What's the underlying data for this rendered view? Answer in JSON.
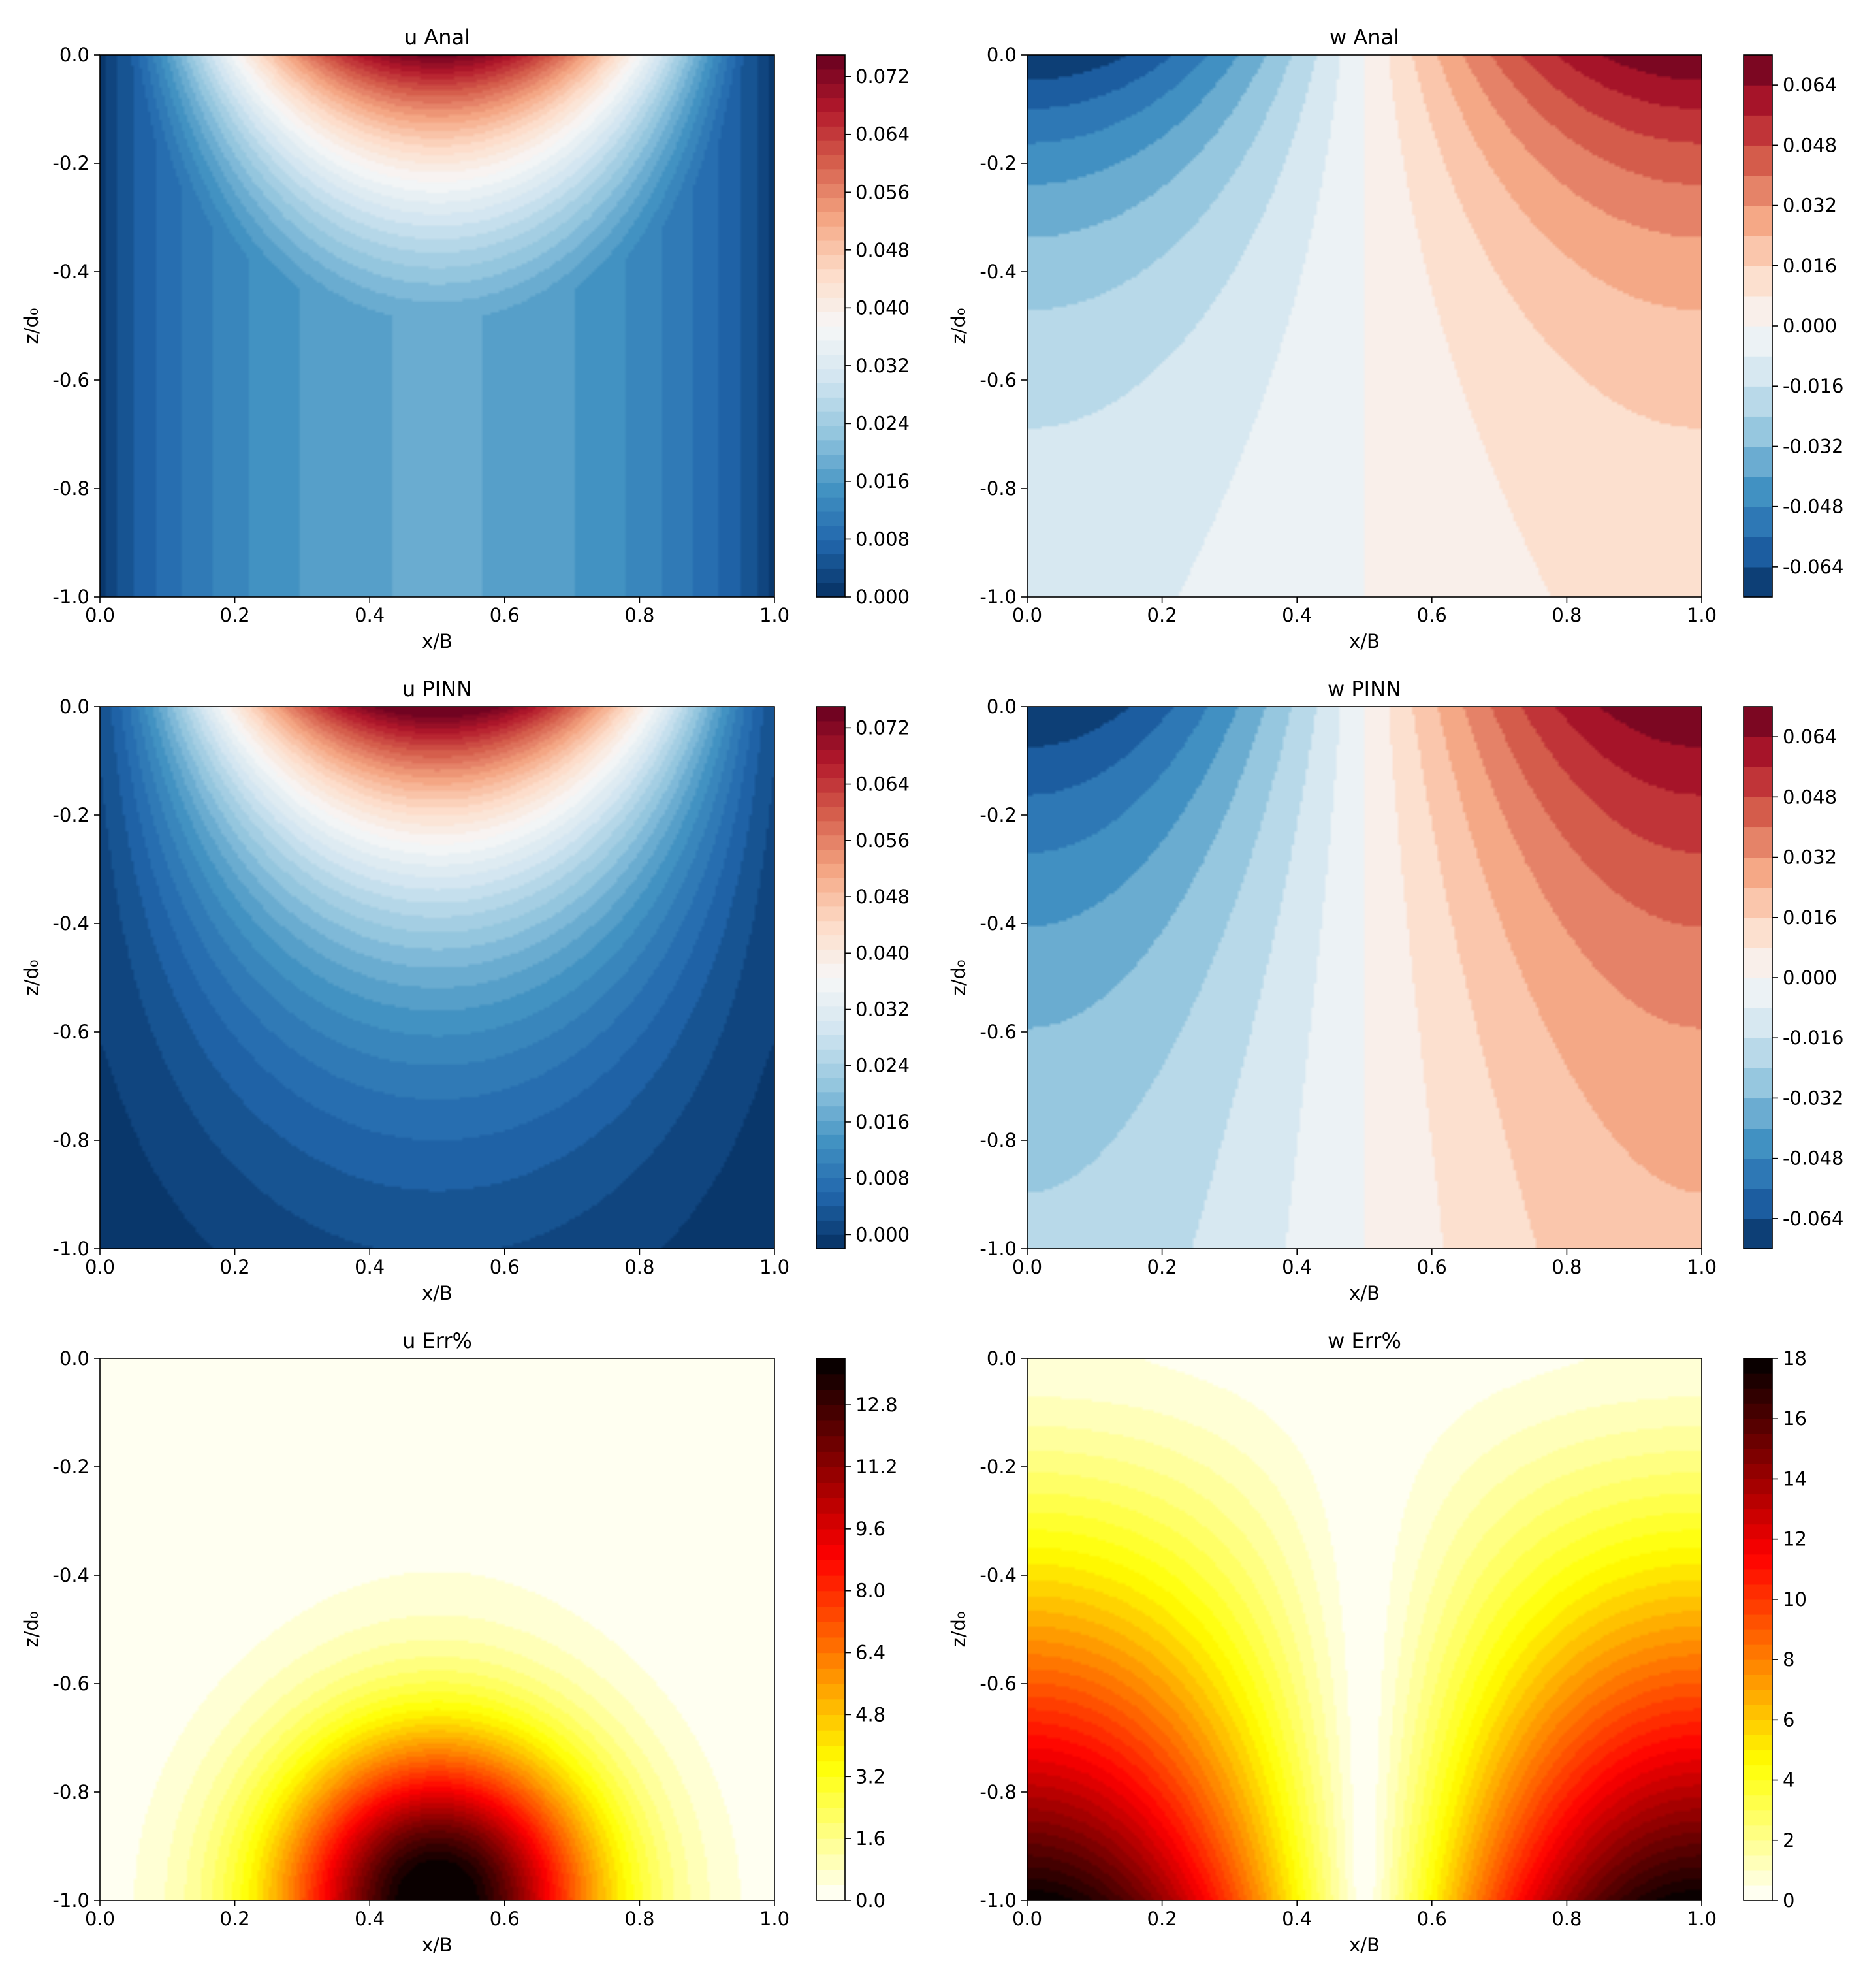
{
  "chart_data": [
    {
      "id": "u-anal",
      "type": "heatmap",
      "title": "u Anal",
      "xlabel": "x/B",
      "ylabel": "z/d₀",
      "xlim": [
        0.0,
        1.0
      ],
      "ylim": [
        -1.0,
        0.0
      ],
      "xticks": [
        "0.0",
        "0.2",
        "0.4",
        "0.6",
        "0.8",
        "1.0"
      ],
      "yticks": [
        "0.0",
        "-0.2",
        "-0.4",
        "-0.6",
        "-0.8",
        "-1.0"
      ],
      "colormap": "RdBu_r",
      "field": "u_anal",
      "vmin": 0.0,
      "vmax": 0.075,
      "levels": 38,
      "colorbar_ticks": [
        "0.000",
        "0.008",
        "0.016",
        "0.024",
        "0.032",
        "0.040",
        "0.048",
        "0.056",
        "0.064",
        "0.072"
      ],
      "colorbar_tick_values": [
        0.0,
        0.008,
        0.016,
        0.024,
        0.032,
        0.04,
        0.048,
        0.056,
        0.064,
        0.072
      ]
    },
    {
      "id": "w-anal",
      "type": "heatmap",
      "title": "w Anal",
      "xlabel": "x/B",
      "ylabel": "z/d₀",
      "xlim": [
        0.0,
        1.0
      ],
      "ylim": [
        -1.0,
        0.0
      ],
      "xticks": [
        "0.0",
        "0.2",
        "0.4",
        "0.6",
        "0.8",
        "1.0"
      ],
      "yticks": [
        "0.0",
        "-0.2",
        "-0.4",
        "-0.6",
        "-0.8",
        "-1.0"
      ],
      "colormap": "RdBu_r",
      "field": "w_anal",
      "vmin": -0.072,
      "vmax": 0.072,
      "levels": 18,
      "colorbar_ticks": [
        "-0.064",
        "-0.048",
        "-0.032",
        "-0.016",
        "0.000",
        "0.016",
        "0.032",
        "0.048",
        "0.064"
      ],
      "colorbar_tick_values": [
        -0.064,
        -0.048,
        -0.032,
        -0.016,
        0.0,
        0.016,
        0.032,
        0.048,
        0.064
      ]
    },
    {
      "id": "u-pinn",
      "type": "heatmap",
      "title": "u PINN",
      "xlabel": "x/B",
      "ylabel": "z/d₀",
      "xlim": [
        0.0,
        1.0
      ],
      "ylim": [
        -1.0,
        0.0
      ],
      "xticks": [
        "0.0",
        "0.2",
        "0.4",
        "0.6",
        "0.8",
        "1.0"
      ],
      "yticks": [
        "0.0",
        "-0.2",
        "-0.4",
        "-0.6",
        "-0.8",
        "-1.0"
      ],
      "colormap": "RdBu_r",
      "field": "u_pinn",
      "vmin": -0.002,
      "vmax": 0.075,
      "levels": 38,
      "colorbar_ticks": [
        "0.000",
        "0.008",
        "0.016",
        "0.024",
        "0.032",
        "0.040",
        "0.048",
        "0.056",
        "0.064",
        "0.072"
      ],
      "colorbar_tick_values": [
        0.0,
        0.008,
        0.016,
        0.024,
        0.032,
        0.04,
        0.048,
        0.056,
        0.064,
        0.072
      ]
    },
    {
      "id": "w-pinn",
      "type": "heatmap",
      "title": "w PINN",
      "xlabel": "x/B",
      "ylabel": "z/d₀",
      "xlim": [
        0.0,
        1.0
      ],
      "ylim": [
        -1.0,
        0.0
      ],
      "xticks": [
        "0.0",
        "0.2",
        "0.4",
        "0.6",
        "0.8",
        "1.0"
      ],
      "yticks": [
        "0.0",
        "-0.2",
        "-0.4",
        "-0.6",
        "-0.8",
        "-1.0"
      ],
      "colormap": "RdBu_r",
      "field": "w_pinn",
      "vmin": -0.072,
      "vmax": 0.072,
      "levels": 18,
      "colorbar_ticks": [
        "-0.064",
        "-0.048",
        "-0.032",
        "-0.016",
        "0.000",
        "0.016",
        "0.032",
        "0.048",
        "0.064"
      ],
      "colorbar_tick_values": [
        -0.064,
        -0.048,
        -0.032,
        -0.016,
        0.0,
        0.016,
        0.032,
        0.048,
        0.064
      ]
    },
    {
      "id": "u-err",
      "type": "heatmap",
      "title": "u Err%",
      "xlabel": "x/B",
      "ylabel": "z/d₀",
      "xlim": [
        0.0,
        1.0
      ],
      "ylim": [
        -1.0,
        0.0
      ],
      "xticks": [
        "0.0",
        "0.2",
        "0.4",
        "0.6",
        "0.8",
        "1.0"
      ],
      "yticks": [
        "0.0",
        "-0.2",
        "-0.4",
        "-0.6",
        "-0.8",
        "-1.0"
      ],
      "colormap": "hot_r",
      "field": "u_err",
      "vmin": 0.0,
      "vmax": 14.0,
      "levels": 35,
      "colorbar_ticks": [
        "0.0",
        "1.6",
        "3.2",
        "4.8",
        "6.4",
        "8.0",
        "9.6",
        "11.2",
        "12.8"
      ],
      "colorbar_tick_values": [
        0.0,
        1.6,
        3.2,
        4.8,
        6.4,
        8.0,
        9.6,
        11.2,
        12.8
      ]
    },
    {
      "id": "w-err",
      "type": "heatmap",
      "title": "w Err%",
      "xlabel": "x/B",
      "ylabel": "z/d₀",
      "xlim": [
        0.0,
        1.0
      ],
      "ylim": [
        -1.0,
        0.0
      ],
      "xticks": [
        "0.0",
        "0.2",
        "0.4",
        "0.6",
        "0.8",
        "1.0"
      ],
      "yticks": [
        "0.0",
        "-0.2",
        "-0.4",
        "-0.6",
        "-0.8",
        "-1.0"
      ],
      "colormap": "hot_r",
      "field": "w_err",
      "vmin": 0.0,
      "vmax": 18.0,
      "levels": 36,
      "colorbar_ticks": [
        "0",
        "2",
        "4",
        "6",
        "8",
        "10",
        "12",
        "14",
        "16",
        "18"
      ],
      "colorbar_tick_values": [
        0,
        2,
        4,
        6,
        8,
        10,
        12,
        14,
        16,
        18
      ]
    }
  ]
}
